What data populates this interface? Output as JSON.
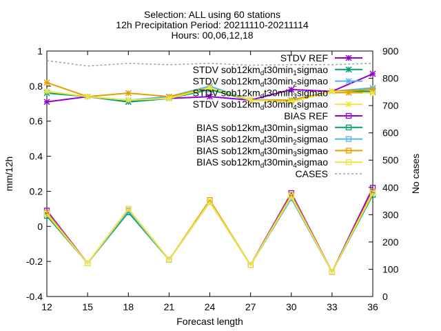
{
  "chart_data": {
    "type": "line",
    "title_lines": [
      "Selection: ALL using    60 stations",
      "12h Precipitation   Period: 20211110-20211114",
      "Hours: 00,06,12,18"
    ],
    "xlabel": "Forecast length",
    "ylabel": "mm/12h",
    "y2label": "No cases",
    "x": [
      12,
      15,
      18,
      21,
      24,
      27,
      30,
      33,
      36
    ],
    "xlim": [
      12,
      36
    ],
    "ylim": [
      -0.4,
      1.0
    ],
    "y2lim": [
      0,
      900
    ],
    "xticks": [
      "12",
      "15",
      "18",
      "21",
      "24",
      "27",
      "30",
      "33",
      "36"
    ],
    "yticks": [
      "-0.4",
      "-0.2",
      "0",
      "0.2",
      "0.4",
      "0.6",
      "0.8",
      "1"
    ],
    "y2ticks": [
      "0",
      "100",
      "200",
      "300",
      "400",
      "500",
      "600",
      "700",
      "800",
      "900"
    ],
    "grid": false,
    "legend_position": "top-right",
    "series": [
      {
        "label_parts": [
          "STDV REF"
        ],
        "axis": "y1",
        "marker": "star",
        "color": "#9400d3",
        "values": [
          0.71,
          0.74,
          0.71,
          0.73,
          0.74,
          0.72,
          0.78,
          0.77,
          0.87
        ]
      },
      {
        "label_parts": [
          "STDV sob12km",
          "d",
          "t30min",
          "1",
          "sigmao"
        ],
        "axis": "y1",
        "marker": "star",
        "color": "#009e73",
        "values": [
          0.76,
          0.74,
          0.71,
          0.73,
          0.78,
          0.72,
          0.72,
          0.77,
          0.77
        ]
      },
      {
        "label_parts": [
          "STDV sob12km",
          "d",
          "t30min",
          "2",
          "sigmao"
        ],
        "axis": "y1",
        "marker": "star",
        "color": "#56b4e9",
        "values": [
          0.77,
          0.74,
          0.72,
          0.74,
          0.8,
          0.72,
          0.71,
          0.77,
          0.79
        ]
      },
      {
        "label_parts": [
          "STDV sob12km",
          "d",
          "t30min",
          "3",
          "sigmao"
        ],
        "axis": "y1",
        "marker": "star",
        "color": "#e69f00",
        "values": [
          0.82,
          0.74,
          0.76,
          0.74,
          0.79,
          0.72,
          0.72,
          0.77,
          0.78
        ]
      },
      {
        "label_parts": [
          "STDV sob12km",
          "d",
          "t30min",
          "4",
          "sigmao"
        ],
        "axis": "y1",
        "marker": "star",
        "color": "#f0e442",
        "values": [
          0.77,
          0.74,
          0.72,
          0.73,
          0.79,
          0.72,
          0.71,
          0.77,
          0.76
        ]
      },
      {
        "label_parts": [
          "BIAS REF"
        ],
        "axis": "y1",
        "marker": "square",
        "color": "#9400d3",
        "values": [
          0.09,
          -0.21,
          0.09,
          -0.19,
          0.14,
          -0.22,
          0.19,
          -0.26,
          0.22
        ]
      },
      {
        "label_parts": [
          "BIAS sob12km",
          "d",
          "t30min",
          "1",
          "sigmao"
        ],
        "axis": "y1",
        "marker": "square",
        "color": "#009e73",
        "values": [
          0.06,
          -0.21,
          0.08,
          -0.19,
          0.14,
          -0.22,
          0.16,
          -0.26,
          0.18
        ]
      },
      {
        "label_parts": [
          "BIAS sob12km",
          "d",
          "t30min",
          "2",
          "sigmao"
        ],
        "axis": "y1",
        "marker": "square",
        "color": "#56b4e9",
        "values": [
          0.07,
          -0.21,
          0.09,
          -0.19,
          0.14,
          -0.22,
          0.16,
          -0.26,
          0.19
        ]
      },
      {
        "label_parts": [
          "BIAS sob12km",
          "d",
          "t30min",
          "3",
          "sigmao"
        ],
        "axis": "y1",
        "marker": "square",
        "color": "#e69f00",
        "values": [
          0.08,
          -0.21,
          0.1,
          -0.19,
          0.15,
          -0.22,
          0.18,
          -0.26,
          0.2
        ]
      },
      {
        "label_parts": [
          "BIAS sob12km",
          "d",
          "t30min",
          "4",
          "sigmao"
        ],
        "axis": "y1",
        "marker": "square",
        "color": "#f0e442",
        "values": [
          0.07,
          -0.21,
          0.1,
          -0.19,
          0.14,
          -0.22,
          0.17,
          -0.26,
          0.19
        ]
      },
      {
        "label_parts": [
          "CASES"
        ],
        "axis": "y2",
        "marker": "none",
        "dashed": true,
        "color": "#a0a0a0",
        "values": [
          865,
          845,
          855,
          850,
          855,
          848,
          850,
          850,
          855
        ]
      }
    ]
  }
}
